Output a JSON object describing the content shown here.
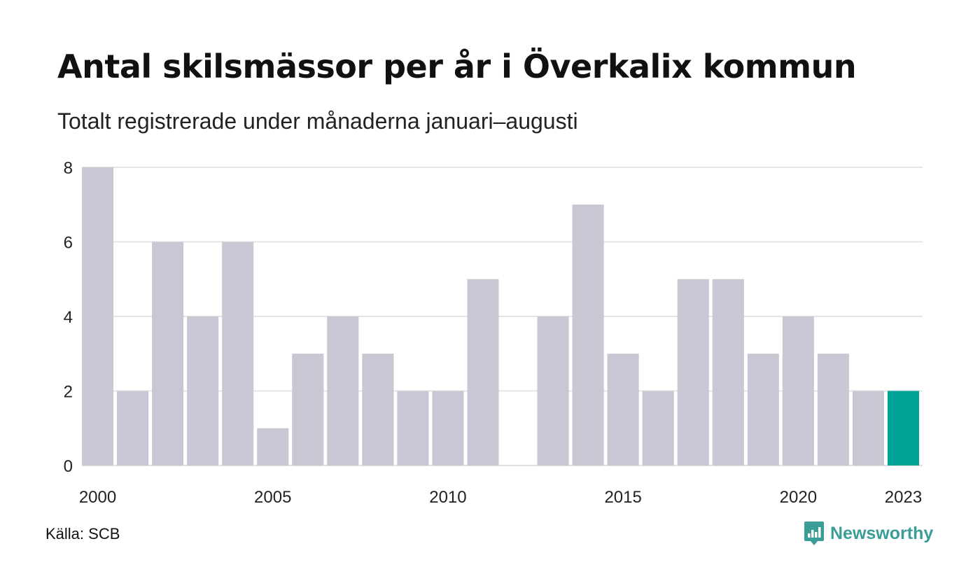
{
  "title": "Antal skilsmässor per år i Överkalix kommun",
  "subtitle": "Totalt registrerade under månaderna januari–augusti",
  "source": "Källa: SCB",
  "brand": {
    "name": "Newsworthy",
    "icon": "newsworthy-logo-icon",
    "color": "#3a9d97"
  },
  "colors": {
    "bar": "#c8c7d3",
    "highlight": "#00a497",
    "grid": "#e4e4e4",
    "baseline": "#e0e0e0"
  },
  "chart_data": {
    "type": "bar",
    "categories": [
      "2000",
      "2001",
      "2002",
      "2003",
      "2004",
      "2005",
      "2006",
      "2007",
      "2008",
      "2009",
      "2010",
      "2011",
      "2012",
      "2013",
      "2014",
      "2015",
      "2016",
      "2017",
      "2018",
      "2019",
      "2020",
      "2021",
      "2022",
      "2023"
    ],
    "values": [
      8,
      2,
      6,
      4,
      6,
      1,
      3,
      4,
      3,
      2,
      2,
      5,
      0,
      4,
      7,
      3,
      2,
      5,
      5,
      3,
      4,
      3,
      2,
      2
    ],
    "highlight_index": 23,
    "x_tick_labels": [
      "2000",
      "2005",
      "2010",
      "2015",
      "2020",
      "2023"
    ],
    "y_ticks": [
      0,
      2,
      4,
      6,
      8
    ],
    "ylim": [
      0,
      8
    ],
    "xlabel": "",
    "ylabel": "",
    "grid": true,
    "legend": "none"
  }
}
